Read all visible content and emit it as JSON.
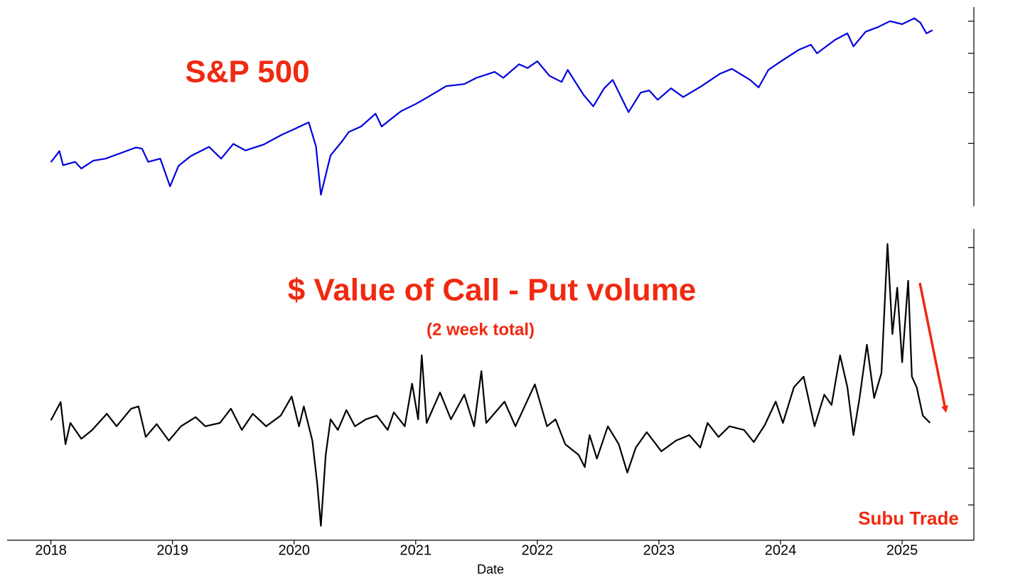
{
  "chart_data": [
    {
      "type": "line",
      "title": "S&P 500",
      "color": "#0000dd",
      "yscale": "log",
      "xlim": [
        2017.64,
        2025.59
      ],
      "ylim": [
        2100,
        6500
      ],
      "yticks": [
        3000,
        4000,
        5000,
        6000
      ],
      "x": [
        2018.0,
        2018.07,
        2018.1,
        2018.2,
        2018.25,
        2018.35,
        2018.45,
        2018.55,
        2018.7,
        2018.75,
        2018.8,
        2018.9,
        2018.98,
        2019.05,
        2019.15,
        2019.3,
        2019.4,
        2019.5,
        2019.6,
        2019.75,
        2019.9,
        2020.0,
        2020.12,
        2020.18,
        2020.22,
        2020.3,
        2020.4,
        2020.45,
        2020.55,
        2020.67,
        2020.72,
        2020.8,
        2020.88,
        2021.0,
        2021.1,
        2021.25,
        2021.4,
        2021.5,
        2021.65,
        2021.72,
        2021.85,
        2021.92,
        2022.0,
        2022.1,
        2022.2,
        2022.25,
        2022.38,
        2022.46,
        2022.55,
        2022.62,
        2022.75,
        2022.85,
        2022.92,
        2022.99,
        2023.1,
        2023.2,
        2023.35,
        2023.5,
        2023.6,
        2023.75,
        2023.82,
        2023.9,
        2024.0,
        2024.15,
        2024.25,
        2024.3,
        2024.45,
        2024.55,
        2024.6,
        2024.7,
        2024.8,
        2024.9,
        2025.0,
        2025.1,
        2025.15,
        2025.2,
        2025.25
      ],
      "values": [
        2695,
        2870,
        2650,
        2700,
        2600,
        2720,
        2750,
        2820,
        2930,
        2910,
        2700,
        2750,
        2350,
        2640,
        2790,
        2940,
        2750,
        2990,
        2880,
        2980,
        3150,
        3250,
        3380,
        2950,
        2240,
        2800,
        3050,
        3200,
        3300,
        3550,
        3300,
        3450,
        3600,
        3750,
        3900,
        4150,
        4200,
        4350,
        4500,
        4350,
        4700,
        4600,
        4780,
        4400,
        4250,
        4550,
        3950,
        3700,
        4100,
        4300,
        3580,
        4000,
        4050,
        3840,
        4100,
        3900,
        4150,
        4450,
        4580,
        4300,
        4120,
        4550,
        4770,
        5100,
        5250,
        5000,
        5400,
        5600,
        5200,
        5650,
        5800,
        6000,
        5900,
        6100,
        5950,
        5600,
        5700
      ]
    },
    {
      "type": "line",
      "title": "$ Value of Call - Put volume",
      "subtitle": "(2 week total)",
      "xlabel": "Date",
      "annotation": "Subu Trade",
      "color": "#000000",
      "xlim": [
        2017.64,
        2025.59
      ],
      "xticks": [
        2018,
        2019,
        2020,
        2021,
        2022,
        2023,
        2024,
        2025
      ],
      "ylim": [
        -2.96,
        5.51
      ],
      "yticks": [
        -2,
        -1,
        0,
        1,
        2,
        3,
        4,
        5
      ],
      "x": [
        2018.0,
        2018.08,
        2018.12,
        2018.16,
        2018.25,
        2018.34,
        2018.46,
        2018.54,
        2018.66,
        2018.72,
        2018.78,
        2018.87,
        2018.97,
        2019.07,
        2019.19,
        2019.27,
        2019.39,
        2019.48,
        2019.57,
        2019.66,
        2019.77,
        2019.89,
        2019.98,
        2020.04,
        2020.08,
        2020.15,
        2020.19,
        2020.22,
        2020.26,
        2020.3,
        2020.36,
        2020.43,
        2020.5,
        2020.59,
        2020.68,
        2020.77,
        2020.82,
        2020.91,
        2020.97,
        2021.02,
        2021.05,
        2021.09,
        2021.2,
        2021.29,
        2021.4,
        2021.48,
        2021.54,
        2021.58,
        2021.73,
        2021.82,
        2021.98,
        2022.08,
        2022.15,
        2022.23,
        2022.34,
        2022.39,
        2022.43,
        2022.49,
        2022.58,
        2022.67,
        2022.74,
        2022.81,
        2022.9,
        2023.02,
        2023.14,
        2023.25,
        2023.34,
        2023.4,
        2023.49,
        2023.58,
        2023.7,
        2023.78,
        2023.87,
        2023.96,
        2024.02,
        2024.11,
        2024.19,
        2024.28,
        2024.36,
        2024.42,
        2024.49,
        2024.55,
        2024.6,
        2024.65,
        2024.71,
        2024.77,
        2024.83,
        2024.88,
        2024.92,
        2024.96,
        2025.0,
        2025.05,
        2025.08,
        2025.12,
        2025.17,
        2025.23
      ],
      "values": [
        0.3,
        0.8,
        -0.35,
        0.23,
        -0.2,
        0.04,
        0.48,
        0.14,
        0.62,
        0.68,
        -0.15,
        0.2,
        -0.25,
        0.14,
        0.39,
        0.14,
        0.23,
        0.62,
        0.04,
        0.48,
        0.14,
        0.43,
        0.95,
        0.14,
        0.68,
        -0.25,
        -1.41,
        -2.57,
        -0.64,
        0.33,
        0.04,
        0.58,
        0.14,
        0.33,
        0.43,
        0.04,
        0.52,
        0.14,
        1.3,
        0.33,
        2.07,
        0.23,
        1.06,
        0.33,
        1.0,
        0.14,
        1.64,
        0.23,
        0.81,
        0.14,
        1.28,
        0.14,
        0.33,
        -0.35,
        -0.64,
        -0.97,
        -0.1,
        -0.74,
        0.14,
        -0.35,
        -1.12,
        -0.44,
        -0.02,
        -0.54,
        -0.25,
        -0.1,
        -0.44,
        0.23,
        -0.15,
        0.14,
        0.04,
        -0.29,
        0.17,
        0.81,
        0.23,
        1.2,
        1.49,
        0.14,
        1.0,
        0.72,
        2.07,
        1.2,
        -0.1,
        0.91,
        2.36,
        0.91,
        1.59,
        5.1,
        2.65,
        3.91,
        1.88,
        4.1,
        1.49,
        1.2,
        0.43,
        0.23
      ]
    }
  ]
}
